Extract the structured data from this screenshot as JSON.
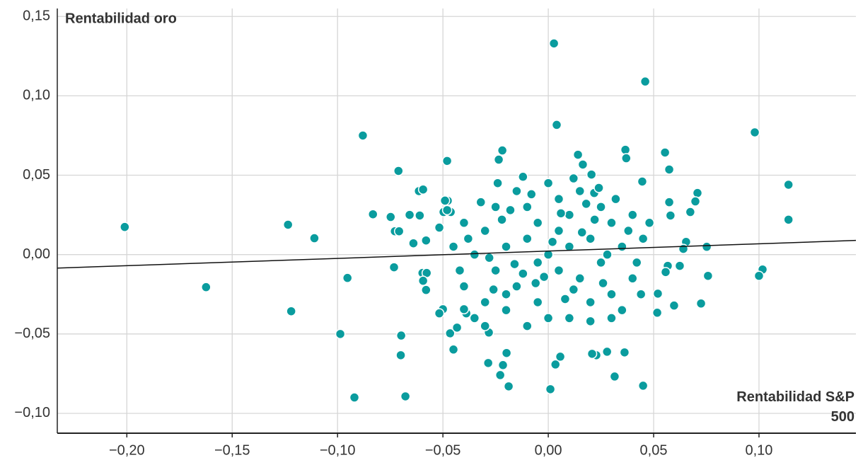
{
  "chart_data": {
    "type": "scatter",
    "y_label": "Rentabilidad oro",
    "x_label": "Rentabilidad S&P 500",
    "xlim": [
      -0.233,
      0.146
    ],
    "ylim": [
      -0.1125,
      0.155
    ],
    "xticks": [
      {
        "value": -0.2,
        "label": "−0,20"
      },
      {
        "value": -0.15,
        "label": "−0,15"
      },
      {
        "value": -0.1,
        "label": "−0,10"
      },
      {
        "value": -0.05,
        "label": "−0,05"
      },
      {
        "value": 0,
        "label": "0,00"
      },
      {
        "value": 0.05,
        "label": "0,05"
      },
      {
        "value": 0.1,
        "label": "0,10"
      }
    ],
    "yticks": [
      {
        "value": -0.1,
        "label": "−0,10"
      },
      {
        "value": -0.05,
        "label": "−0,05"
      },
      {
        "value": 0,
        "label": "0,00"
      },
      {
        "value": 0.05,
        "label": "0,05"
      },
      {
        "value": 0.1,
        "label": "0,10"
      },
      {
        "value": 0.15,
        "label": "0,15"
      }
    ],
    "grid": true,
    "color": "#0a9c9e",
    "trendline": {
      "slope": 0.046,
      "intercept": 0.0022
    },
    "x": [
      0.0027,
      0.046,
      0.004,
      -0.088,
      0.098,
      0.114,
      0.114,
      -0.201,
      -0.1235,
      -0.111,
      -0.1624,
      -0.122,
      -0.0953,
      -0.0987,
      -0.092,
      -0.0678,
      -0.0698,
      -0.07,
      -0.0732,
      -0.0711,
      -0.048,
      -0.0832,
      -0.0748,
      -0.0728,
      -0.0708,
      -0.0658,
      -0.0614,
      -0.0594,
      -0.064,
      -0.058,
      -0.061,
      0.0758,
      0.1017,
      0.1,
      0.0725,
      0.0752,
      0.0708,
      0.0698,
      0.0674,
      0.0654,
      0.0641,
      0.0624,
      0.0574,
      0.0554,
      0.0574,
      0.058,
      0.0597,
      0.0517,
      0.052,
      0.0567,
      0.0557,
      0.0366,
      0.037,
      0.0446,
      0.0362,
      0.0315,
      0.0279,
      0.045,
      0.0228,
      0.0208,
      0.001,
      0.0034,
      0.0057,
      -0.0188,
      -0.0215,
      -0.0228,
      -0.0198,
      -0.0285,
      -0.0282,
      -0.045,
      -0.0466,
      -0.0433,
      -0.05,
      -0.0389,
      -0.04,
      -0.0517,
      -0.0597,
      -0.0577,
      -0.058,
      -0.0594,
      -0.0477,
      -0.049,
      -0.0497,
      -0.0463,
      -0.0517,
      -0.0218,
      -0.0235,
      0.0141,
      0.0164,
      0.0205,
      0.0218,
      0,
      0.01,
      -0.01,
      0.005,
      -0.005,
      0.02,
      -0.02,
      0.015,
      -0.015,
      0.025,
      -0.025,
      0.03,
      -0.03,
      0.01,
      -0.01,
      0.005,
      -0.005,
      0.02,
      -0.02,
      0.035,
      -0.035,
      0.04,
      -0.04,
      0.03,
      -0.03,
      0.015,
      -0.015,
      0,
      0,
      0.01,
      -0.01,
      0.025,
      -0.025,
      0.04,
      -0.04,
      0.045,
      -0.045,
      0.035,
      -0.035,
      0.005,
      -0.005,
      0.012,
      -0.012,
      0.022,
      -0.022,
      0.028,
      -0.028,
      0.018,
      -0.018,
      0.008,
      -0.008,
      0.032,
      -0.032,
      0.042,
      -0.042,
      0.038,
      -0.038,
      0.016,
      -0.016,
      0.006,
      -0.006,
      0.026,
      -0.026,
      0.02,
      -0.02,
      0.012,
      -0.012,
      0.048,
      -0.048,
      0.03,
      -0.03,
      0.002,
      -0.002,
      0.044,
      0.024,
      -0.024
    ],
    "y": [
      0.133,
      0.109,
      0.0817,
      0.075,
      0.077,
      0.044,
      0.022,
      0.0174,
      0.0188,
      0.0103,
      -0.0205,
      -0.0357,
      -0.0147,
      -0.05,
      -0.09,
      -0.0893,
      -0.051,
      -0.0634,
      -0.008,
      0.0527,
      0.059,
      0.0254,
      0.0237,
      0.0147,
      0.0147,
      0.025,
      0.04,
      0.041,
      0.0071,
      0.0089,
      0.0246,
      -0.0134,
      -0.0094,
      -0.0134,
      -0.0308,
      0.0049,
      0.0388,
      0.0335,
      0.0268,
      0.008,
      0.0036,
      -0.0071,
      0.0536,
      0.0643,
      0.033,
      0.0246,
      -0.0321,
      -0.0366,
      -0.0246,
      -0.0071,
      -0.011,
      0.066,
      0.0607,
      0.046,
      -0.0616,
      -0.0768,
      -0.0612,
      -0.0826,
      -0.0634,
      -0.0625,
      -0.0848,
      -0.0692,
      -0.0643,
      -0.083,
      -0.0696,
      -0.0759,
      -0.062,
      -0.0683,
      -0.0491,
      -0.0598,
      -0.0496,
      -0.046,
      -0.0344,
      -0.037,
      -0.0344,
      -0.037,
      -0.0116,
      -0.0116,
      -0.0223,
      -0.0165,
      0.0339,
      0.034,
      0.0268,
      0.0268,
      0.017,
      0.0656,
      0.0598,
      0.0629,
      0.0567,
      0.0504,
      0.0388,
      0,
      0.005,
      0.01,
      -0.01,
      -0.005,
      0.01,
      0.005,
      -0.015,
      -0.02,
      -0.005,
      -0.01,
      0.02,
      0.015,
      0.025,
      0.03,
      0.035,
      -0.03,
      -0.03,
      -0.035,
      0.005,
      0,
      -0.015,
      -0.02,
      -0.025,
      -0.03,
      0.04,
      0.04,
      0.045,
      -0.04,
      -0.04,
      -0.045,
      0.03,
      0.03,
      0.025,
      0.02,
      0.01,
      0.005,
      -0.035,
      -0.04,
      0.015,
      0.02,
      -0.022,
      -0.012,
      0.022,
      0.022,
      0,
      -0.002,
      0.032,
      0.028,
      -0.028,
      0.038,
      0.035,
      0.033,
      -0.005,
      -0.01,
      0.015,
      0.01,
      0.014,
      -0.006,
      0.026,
      -0.018,
      -0.018,
      -0.022,
      -0.042,
      -0.025,
      0.048,
      0.049,
      0.02,
      0.028,
      -0.04,
      -0.045,
      0.008,
      -0.014,
      -0.025,
      0.042,
      0.045
    ]
  }
}
